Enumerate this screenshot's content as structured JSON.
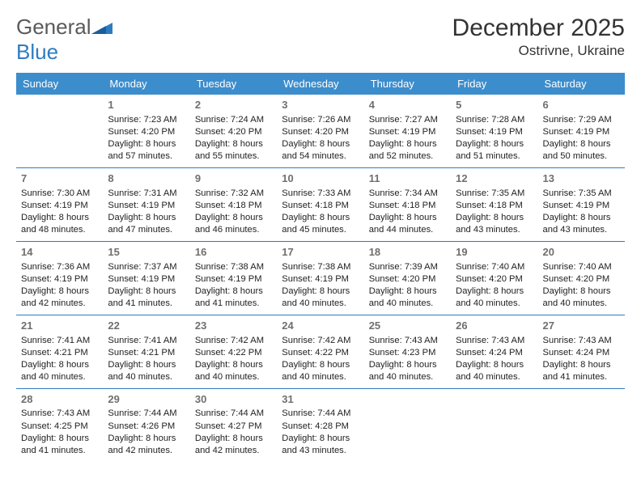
{
  "logo": {
    "word1": "General",
    "word2": "Blue"
  },
  "title": "December 2025",
  "location": "Ostrivne, Ukraine",
  "colors": {
    "header_bg": "#3c8dcc",
    "header_text": "#ffffff",
    "row_divider": "#2e7cc0",
    "daynum": "#6f6f6f",
    "bodytext": "#222222",
    "logo_gray": "#5a5a5a",
    "logo_blue": "#2e7cc0"
  },
  "weekdays": [
    "Sunday",
    "Monday",
    "Tuesday",
    "Wednesday",
    "Thursday",
    "Friday",
    "Saturday"
  ],
  "weeks": [
    [
      {
        "n": "",
        "sr": "",
        "ss": "",
        "dl": ""
      },
      {
        "n": "1",
        "sr": "Sunrise: 7:23 AM",
        "ss": "Sunset: 4:20 PM",
        "dl": "Daylight: 8 hours and 57 minutes."
      },
      {
        "n": "2",
        "sr": "Sunrise: 7:24 AM",
        "ss": "Sunset: 4:20 PM",
        "dl": "Daylight: 8 hours and 55 minutes."
      },
      {
        "n": "3",
        "sr": "Sunrise: 7:26 AM",
        "ss": "Sunset: 4:20 PM",
        "dl": "Daylight: 8 hours and 54 minutes."
      },
      {
        "n": "4",
        "sr": "Sunrise: 7:27 AM",
        "ss": "Sunset: 4:19 PM",
        "dl": "Daylight: 8 hours and 52 minutes."
      },
      {
        "n": "5",
        "sr": "Sunrise: 7:28 AM",
        "ss": "Sunset: 4:19 PM",
        "dl": "Daylight: 8 hours and 51 minutes."
      },
      {
        "n": "6",
        "sr": "Sunrise: 7:29 AM",
        "ss": "Sunset: 4:19 PM",
        "dl": "Daylight: 8 hours and 50 minutes."
      }
    ],
    [
      {
        "n": "7",
        "sr": "Sunrise: 7:30 AM",
        "ss": "Sunset: 4:19 PM",
        "dl": "Daylight: 8 hours and 48 minutes."
      },
      {
        "n": "8",
        "sr": "Sunrise: 7:31 AM",
        "ss": "Sunset: 4:19 PM",
        "dl": "Daylight: 8 hours and 47 minutes."
      },
      {
        "n": "9",
        "sr": "Sunrise: 7:32 AM",
        "ss": "Sunset: 4:18 PM",
        "dl": "Daylight: 8 hours and 46 minutes."
      },
      {
        "n": "10",
        "sr": "Sunrise: 7:33 AM",
        "ss": "Sunset: 4:18 PM",
        "dl": "Daylight: 8 hours and 45 minutes."
      },
      {
        "n": "11",
        "sr": "Sunrise: 7:34 AM",
        "ss": "Sunset: 4:18 PM",
        "dl": "Daylight: 8 hours and 44 minutes."
      },
      {
        "n": "12",
        "sr": "Sunrise: 7:35 AM",
        "ss": "Sunset: 4:18 PM",
        "dl": "Daylight: 8 hours and 43 minutes."
      },
      {
        "n": "13",
        "sr": "Sunrise: 7:35 AM",
        "ss": "Sunset: 4:19 PM",
        "dl": "Daylight: 8 hours and 43 minutes."
      }
    ],
    [
      {
        "n": "14",
        "sr": "Sunrise: 7:36 AM",
        "ss": "Sunset: 4:19 PM",
        "dl": "Daylight: 8 hours and 42 minutes."
      },
      {
        "n": "15",
        "sr": "Sunrise: 7:37 AM",
        "ss": "Sunset: 4:19 PM",
        "dl": "Daylight: 8 hours and 41 minutes."
      },
      {
        "n": "16",
        "sr": "Sunrise: 7:38 AM",
        "ss": "Sunset: 4:19 PM",
        "dl": "Daylight: 8 hours and 41 minutes."
      },
      {
        "n": "17",
        "sr": "Sunrise: 7:38 AM",
        "ss": "Sunset: 4:19 PM",
        "dl": "Daylight: 8 hours and 40 minutes."
      },
      {
        "n": "18",
        "sr": "Sunrise: 7:39 AM",
        "ss": "Sunset: 4:20 PM",
        "dl": "Daylight: 8 hours and 40 minutes."
      },
      {
        "n": "19",
        "sr": "Sunrise: 7:40 AM",
        "ss": "Sunset: 4:20 PM",
        "dl": "Daylight: 8 hours and 40 minutes."
      },
      {
        "n": "20",
        "sr": "Sunrise: 7:40 AM",
        "ss": "Sunset: 4:20 PM",
        "dl": "Daylight: 8 hours and 40 minutes."
      }
    ],
    [
      {
        "n": "21",
        "sr": "Sunrise: 7:41 AM",
        "ss": "Sunset: 4:21 PM",
        "dl": "Daylight: 8 hours and 40 minutes."
      },
      {
        "n": "22",
        "sr": "Sunrise: 7:41 AM",
        "ss": "Sunset: 4:21 PM",
        "dl": "Daylight: 8 hours and 40 minutes."
      },
      {
        "n": "23",
        "sr": "Sunrise: 7:42 AM",
        "ss": "Sunset: 4:22 PM",
        "dl": "Daylight: 8 hours and 40 minutes."
      },
      {
        "n": "24",
        "sr": "Sunrise: 7:42 AM",
        "ss": "Sunset: 4:22 PM",
        "dl": "Daylight: 8 hours and 40 minutes."
      },
      {
        "n": "25",
        "sr": "Sunrise: 7:43 AM",
        "ss": "Sunset: 4:23 PM",
        "dl": "Daylight: 8 hours and 40 minutes."
      },
      {
        "n": "26",
        "sr": "Sunrise: 7:43 AM",
        "ss": "Sunset: 4:24 PM",
        "dl": "Daylight: 8 hours and 40 minutes."
      },
      {
        "n": "27",
        "sr": "Sunrise: 7:43 AM",
        "ss": "Sunset: 4:24 PM",
        "dl": "Daylight: 8 hours and 41 minutes."
      }
    ],
    [
      {
        "n": "28",
        "sr": "Sunrise: 7:43 AM",
        "ss": "Sunset: 4:25 PM",
        "dl": "Daylight: 8 hours and 41 minutes."
      },
      {
        "n": "29",
        "sr": "Sunrise: 7:44 AM",
        "ss": "Sunset: 4:26 PM",
        "dl": "Daylight: 8 hours and 42 minutes."
      },
      {
        "n": "30",
        "sr": "Sunrise: 7:44 AM",
        "ss": "Sunset: 4:27 PM",
        "dl": "Daylight: 8 hours and 42 minutes."
      },
      {
        "n": "31",
        "sr": "Sunrise: 7:44 AM",
        "ss": "Sunset: 4:28 PM",
        "dl": "Daylight: 8 hours and 43 minutes."
      },
      {
        "n": "",
        "sr": "",
        "ss": "",
        "dl": ""
      },
      {
        "n": "",
        "sr": "",
        "ss": "",
        "dl": ""
      },
      {
        "n": "",
        "sr": "",
        "ss": "",
        "dl": ""
      }
    ]
  ]
}
